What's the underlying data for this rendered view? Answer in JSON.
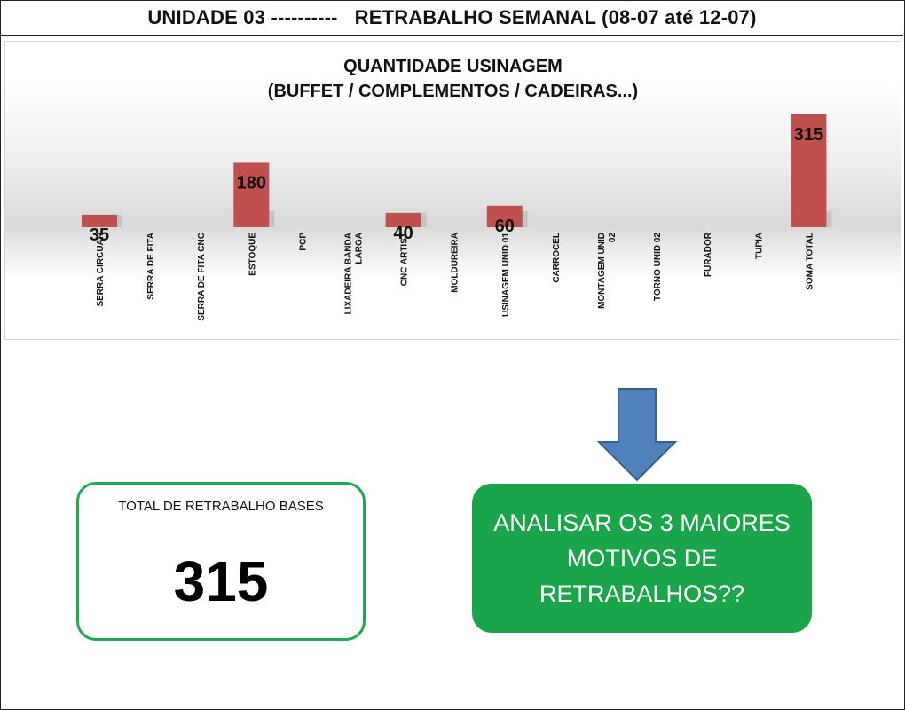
{
  "header": {
    "title": "UNIDADE 03 ----------   RETRABALHO SEMANAL (08-07 até 12-07)"
  },
  "chart_data": {
    "type": "bar",
    "title_line1": "QUANTIDADE USINAGEM",
    "title_line2": "(BUFFET / COMPLEMENTOS / CADEIRAS...)",
    "categories": [
      "SERRA CIRCUAR",
      "SERRA DE FITA",
      "SERRA DE FITA CNC",
      "ESTOQUE",
      "PCP",
      "LIXADEIRA BANDA LARGA",
      "CNC ARTIST",
      "MOLDUREIRA",
      "USINAGEM UNID 01",
      "CARROCEL",
      "MONTAGEM UNID 02",
      "TORNO UNID 02",
      "FURADOR",
      "TUPIA",
      "SOMA TOTAL"
    ],
    "category_lines": [
      [
        "SERRA CIRCUAR"
      ],
      [
        "SERRA DE FITA"
      ],
      [
        "SERRA DE FITA CNC"
      ],
      [
        "ESTOQUE"
      ],
      [
        "PCP"
      ],
      [
        "LIXADEIRA BANDA",
        "LARGA"
      ],
      [
        "CNC ARTIST"
      ],
      [
        "MOLDUREIRA"
      ],
      [
        "USINAGEM UNID 01"
      ],
      [
        "CARROCEL"
      ],
      [
        "MONTAGEM UNID",
        "02"
      ],
      [
        "TORNO UNID 02"
      ],
      [
        "FURADOR"
      ],
      [
        "TUPIA"
      ],
      [
        "SOMA TOTAL"
      ]
    ],
    "values": [
      35,
      null,
      null,
      180,
      null,
      null,
      40,
      null,
      60,
      null,
      null,
      null,
      null,
      null,
      315
    ],
    "value_labels": [
      "35",
      "",
      "",
      "180",
      "",
      "",
      "40",
      "",
      "60",
      "",
      "",
      "",
      "",
      "",
      "315"
    ],
    "bar_color": "#c0504d",
    "xlabel": "",
    "ylabel": "",
    "ylim": [
      0,
      315
    ],
    "grid": false,
    "legend": "none"
  },
  "total_box": {
    "label": "TOTAL DE RETRABALHO BASES",
    "value": "315",
    "border_color": "#1faa50"
  },
  "arrow": {
    "icon": "down-arrow-icon",
    "color": "#4f81bd"
  },
  "action_box": {
    "text": "ANALISAR OS 3 MAIORES MOTIVOS DE RETRABALHOS??",
    "color": "#1aa54a"
  }
}
